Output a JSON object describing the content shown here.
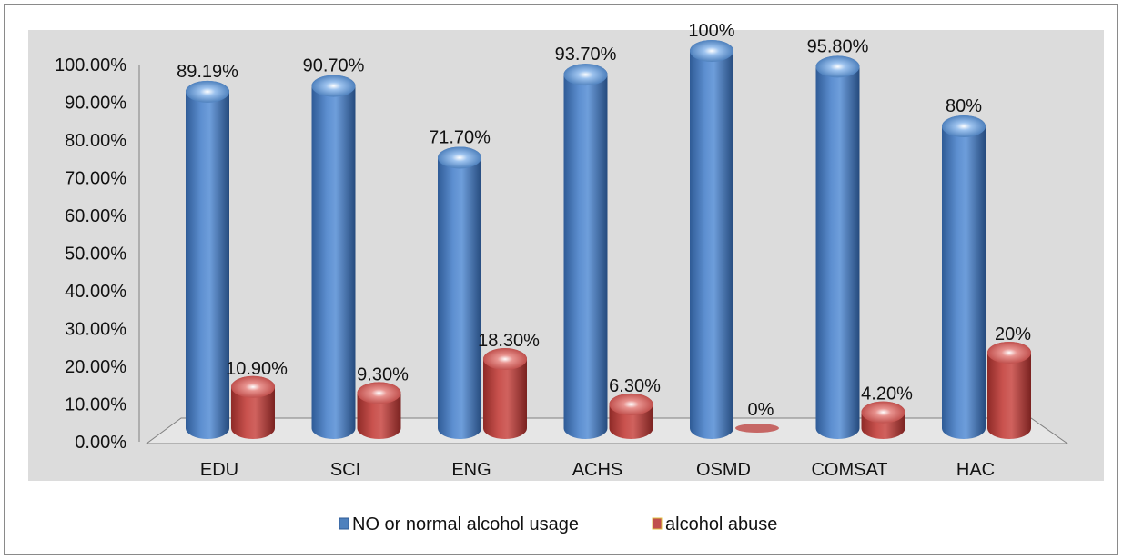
{
  "chart_data": {
    "type": "bar",
    "categories": [
      "EDU",
      "SCI",
      "ENG",
      "ACHS",
      "OSMD",
      "COMSAT",
      "HAC"
    ],
    "series": [
      {
        "name": "NO or normal alcohol usage",
        "values": [
          89.19,
          90.7,
          71.7,
          93.7,
          100,
          95.8,
          80
        ],
        "labels": [
          "89.19%",
          "90.70%",
          "71.70%",
          "93.70%",
          "100%",
          "95.80%",
          "80%"
        ],
        "color": "#4f81bd"
      },
      {
        "name": "alcohol abuse",
        "values": [
          10.9,
          9.3,
          18.3,
          6.3,
          0,
          4.2,
          20
        ],
        "labels": [
          "10.90%",
          "9.30%",
          "18.30%",
          "6.30%",
          "0%",
          "4.20%",
          "20%"
        ],
        "color": "#c0504d"
      }
    ],
    "ylim": [
      0,
      100
    ],
    "yticks": [
      "0.00%",
      "10.00%",
      "20.00%",
      "30.00%",
      "40.00%",
      "50.00%",
      "60.00%",
      "70.00%",
      "80.00%",
      "90.00%",
      "100.00%"
    ],
    "legend_position": "bottom",
    "plot_background": "#dcdcdc",
    "style": "3d-cylinder"
  }
}
